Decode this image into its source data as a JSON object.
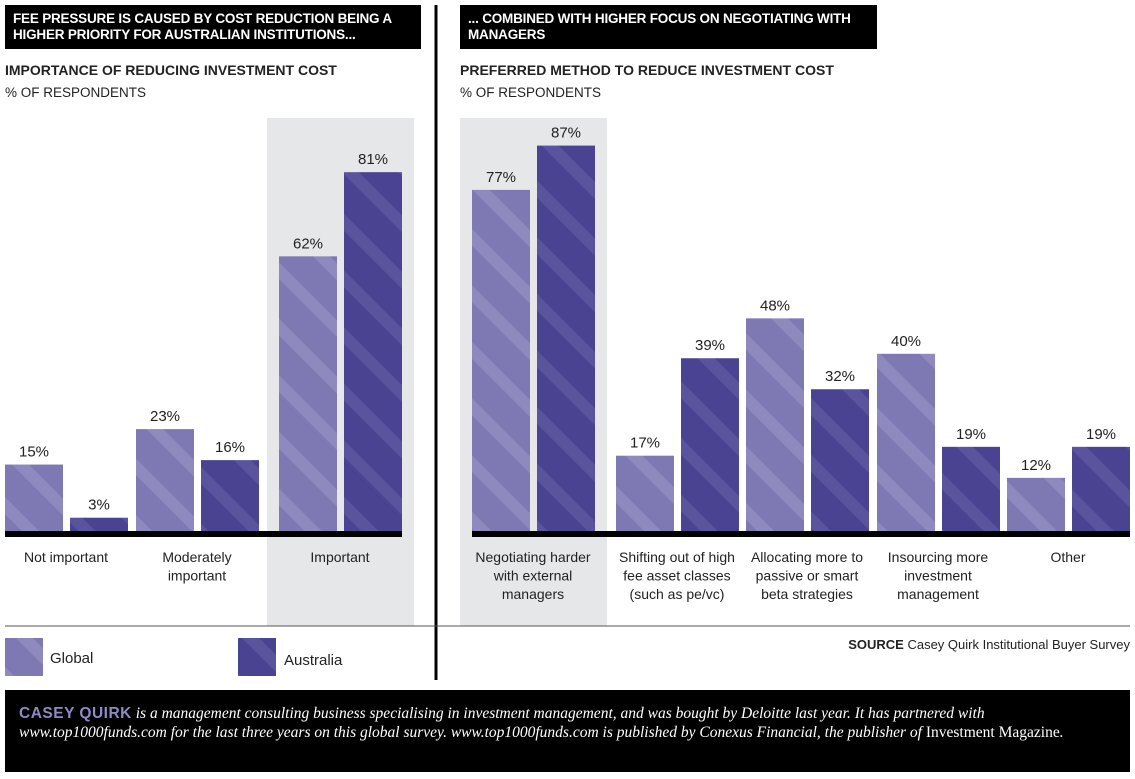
{
  "left": {
    "header": "FEE PRESSURE IS CAUSED BY COST REDUCTION BEING A HIGHER PRIORITY FOR AUSTRALIAN INSTITUTIONS...",
    "title": "IMPORTANCE OF REDUCING INVESTMENT COST",
    "unit": "% OF RESPONDENTS"
  },
  "right": {
    "header": "... COMBINED WITH HIGHER FOCUS ON NEGOTIATING WITH MANAGERS",
    "title": "PREFERRED METHOD TO REDUCE INVESTMENT COST",
    "unit": "% OF RESPONDENTS"
  },
  "legend": {
    "global": "Global",
    "australia": "Australia"
  },
  "source": {
    "label": "SOURCE",
    "text": " Casey Quirk Institutional Buyer Survey"
  },
  "footer": {
    "brand": "CASEY QUIRK",
    "text1": " is a management consulting business specialising in investment management, and was bought by Deloitte last year. It has partnered with www.top1000funds.com for the last three years on this global survey. www.top1000funds.com is published by Conexus Financial, the publisher of ",
    "magazine": "Investment Magazine",
    "text2": "."
  },
  "colors": {
    "global": "#7e79b2",
    "australia": "#4a4391",
    "highlight": "#e6e7e9"
  },
  "chart_data": [
    {
      "type": "bar",
      "title": "IMPORTANCE OF REDUCING INVESTMENT COST",
      "ylabel": "% OF RESPONDENTS",
      "ylim": [
        0,
        100
      ],
      "highlighted_category": "Important",
      "categories": [
        "Not important",
        "Moderately important",
        "Important"
      ],
      "series": [
        {
          "name": "Global",
          "values": [
            15,
            23,
            62
          ]
        },
        {
          "name": "Australia",
          "values": [
            3,
            16,
            81
          ]
        }
      ]
    },
    {
      "type": "bar",
      "title": "PREFERRED METHOD TO REDUCE INVESTMENT COST",
      "ylabel": "% OF RESPONDENTS",
      "ylim": [
        0,
        100
      ],
      "highlighted_category": "Negotiating harder with external managers",
      "categories": [
        "Negotiating harder with external managers",
        "Shifting out of high fee asset classes (such as pe/vc)",
        "Allocating more to passive or smart beta strategies",
        "Insourcing more investment management",
        "Other"
      ],
      "category_lines": [
        [
          "Negotiating harder",
          "with external",
          "managers"
        ],
        [
          "Shifting out of high",
          "fee asset classes",
          "(such as pe/vc)"
        ],
        [
          "Allocating more to",
          "passive or smart",
          "beta strategies"
        ],
        [
          "Insourcing more",
          "investment",
          "management"
        ],
        [
          "Other"
        ]
      ],
      "series": [
        {
          "name": "Global",
          "values": [
            77,
            17,
            48,
            40,
            12
          ]
        },
        {
          "name": "Australia",
          "values": [
            87,
            39,
            32,
            19,
            19
          ]
        }
      ]
    }
  ]
}
